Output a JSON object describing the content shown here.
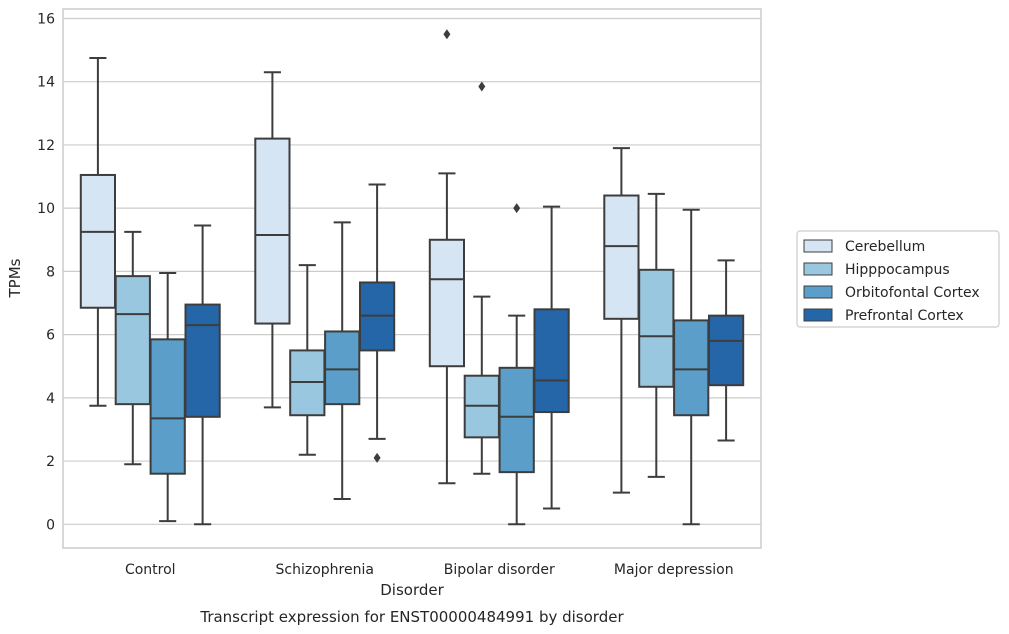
{
  "caption": "Transcript expression for ENST00000484991 by disorder",
  "chart_data": {
    "type": "box",
    "xlabel": "Disorder",
    "ylabel": "TPMs",
    "ylim": [
      -0.75,
      16.3
    ],
    "yticks": [
      "0",
      "2",
      "4",
      "6",
      "8",
      "10",
      "12",
      "14",
      "16"
    ],
    "grid": true,
    "legend_position": "right",
    "categories": [
      "Control",
      "Schizophrenia",
      "Bipolar disorder",
      "Major depression"
    ],
    "series": [
      {
        "name": "Cerebellum",
        "color": "#d6e5f4",
        "boxes": [
          {
            "min": 3.75,
            "q1": 6.85,
            "median": 9.25,
            "q3": 11.05,
            "max": 14.75,
            "outliers": []
          },
          {
            "min": 3.7,
            "q1": 6.35,
            "median": 9.15,
            "q3": 12.2,
            "max": 14.3,
            "outliers": []
          },
          {
            "min": 1.3,
            "q1": 5.0,
            "median": 7.75,
            "q3": 9.0,
            "max": 11.1,
            "outliers": [
              15.5
            ]
          },
          {
            "min": 1.0,
            "q1": 6.5,
            "median": 8.8,
            "q3": 10.4,
            "max": 11.9,
            "outliers": []
          }
        ]
      },
      {
        "name": "Hipppocampus",
        "color": "#9ac7e0",
        "boxes": [
          {
            "min": 1.9,
            "q1": 3.8,
            "median": 6.65,
            "q3": 7.85,
            "max": 9.25,
            "outliers": []
          },
          {
            "min": 2.2,
            "q1": 3.45,
            "median": 4.5,
            "q3": 5.5,
            "max": 8.2,
            "outliers": []
          },
          {
            "min": 1.6,
            "q1": 2.75,
            "median": 3.75,
            "q3": 4.7,
            "max": 7.2,
            "outliers": [
              13.85
            ]
          },
          {
            "min": 1.5,
            "q1": 4.35,
            "median": 5.95,
            "q3": 8.05,
            "max": 10.45,
            "outliers": []
          }
        ]
      },
      {
        "name": "Orbitofontal Cortex",
        "color": "#5a9ec9",
        "boxes": [
          {
            "min": 0.1,
            "q1": 1.6,
            "median": 3.35,
            "q3": 5.85,
            "max": 7.95,
            "outliers": []
          },
          {
            "min": 0.8,
            "q1": 3.8,
            "median": 4.9,
            "q3": 6.1,
            "max": 9.55,
            "outliers": []
          },
          {
            "min": 0.0,
            "q1": 1.65,
            "median": 3.4,
            "q3": 4.95,
            "max": 6.6,
            "outliers": [
              10.0
            ]
          },
          {
            "min": 0.0,
            "q1": 3.45,
            "median": 4.9,
            "q3": 6.45,
            "max": 9.95,
            "outliers": []
          }
        ]
      },
      {
        "name": "Prefrontal Cortex",
        "color": "#2566a9",
        "boxes": [
          {
            "min": 0.0,
            "q1": 3.4,
            "median": 6.3,
            "q3": 6.95,
            "max": 9.45,
            "outliers": []
          },
          {
            "min": 2.7,
            "q1": 5.5,
            "median": 6.6,
            "q3": 7.65,
            "max": 10.75,
            "outliers": [
              2.1
            ]
          },
          {
            "min": 0.5,
            "q1": 3.55,
            "median": 4.55,
            "q3": 6.8,
            "max": 10.05,
            "outliers": []
          },
          {
            "min": 2.65,
            "q1": 4.4,
            "median": 5.8,
            "q3": 6.6,
            "max": 8.35,
            "outliers": []
          }
        ]
      }
    ]
  }
}
